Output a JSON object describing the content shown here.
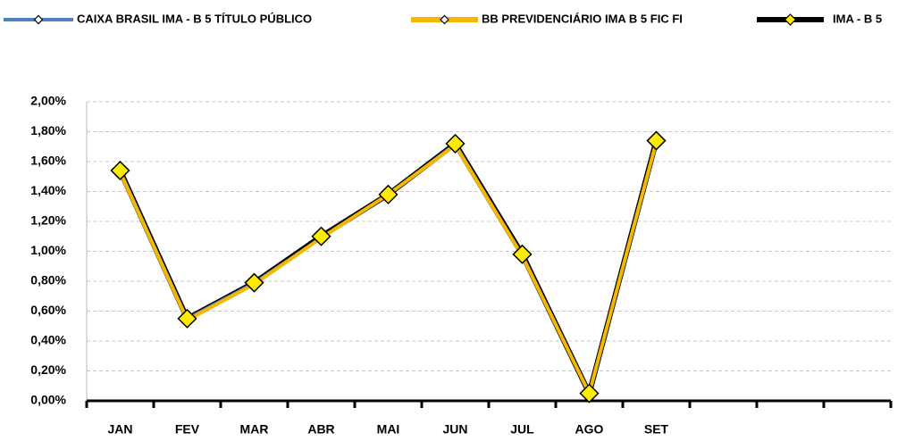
{
  "chart_data": {
    "type": "line",
    "categories": [
      "JAN",
      "FEV",
      "MAR",
      "ABR",
      "MAI",
      "JUN",
      "JUL",
      "AGO",
      "SET",
      null,
      null,
      null
    ],
    "series": [
      {
        "name": "CAIXA BRASIL IMA - B 5 TÍTULO PÚBLICO",
        "color": "#4f81bd",
        "values": [
          1.54,
          0.55,
          0.79,
          1.09,
          1.38,
          1.72,
          0.97,
          0.05,
          1.74,
          null,
          null,
          null
        ]
      },
      {
        "name": "BB PREVIDENCIÁRIO IMA B 5 FIC FI",
        "color": "#f5b800",
        "values": [
          1.53,
          0.54,
          0.78,
          1.09,
          1.38,
          1.71,
          0.97,
          0.05,
          1.73,
          null,
          null,
          null
        ]
      },
      {
        "name": "IMA - B 5",
        "color": "#000000",
        "values": [
          1.54,
          0.55,
          0.79,
          1.1,
          1.38,
          1.72,
          0.98,
          0.05,
          1.74,
          null,
          null,
          null
        ]
      }
    ],
    "ylim": [
      0,
      2
    ],
    "yticks": [
      {
        "value": 0,
        "label": "0,00%"
      },
      {
        "value": 0.2,
        "label": "0,20%"
      },
      {
        "value": 0.4,
        "label": "0,40%"
      },
      {
        "value": 0.6,
        "label": "0,60%"
      },
      {
        "value": 0.8,
        "label": "0,80%"
      },
      {
        "value": 1.0,
        "label": "1,00%"
      },
      {
        "value": 1.2,
        "label": "1,20%"
      },
      {
        "value": 1.4,
        "label": "1,40%"
      },
      {
        "value": 1.6,
        "label": "1,60%"
      },
      {
        "value": 1.8,
        "label": "1,80%"
      },
      {
        "value": 2.0,
        "label": "2,00%"
      }
    ],
    "grid": true
  }
}
